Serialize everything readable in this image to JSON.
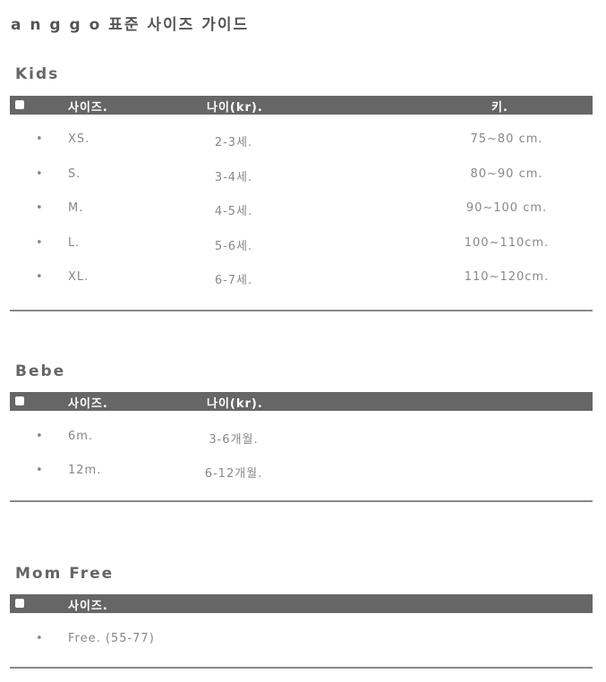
{
  "title": "a n g g o 표준 사이즈 가이드",
  "sections": {
    "kids": {
      "name": "Kids",
      "headers": [
        "사이즈.",
        "나이(kr).",
        "키."
      ],
      "rows": [
        [
          "XS.",
          "2-3세.",
          "75~80 cm."
        ],
        [
          "S.",
          "3-4세.",
          "80~90 cm."
        ],
        [
          "M.",
          "4-5세.",
          "90~100 cm."
        ],
        [
          "L.",
          "5-6세.",
          "100~110cm."
        ],
        [
          "XL.",
          "6-7세.",
          "110~120cm."
        ]
      ]
    },
    "bebe": {
      "name": "Bebe",
      "headers": [
        "사이즈.",
        "나이(kr)."
      ],
      "rows": [
        [
          "6m.",
          "3-6개월."
        ],
        [
          "12m.",
          "6-12개월."
        ]
      ]
    },
    "mom": {
      "name": "Mom Free",
      "headers": [
        "사이즈."
      ],
      "rows": [
        [
          "Free. (55-77)"
        ]
      ]
    }
  },
  "bullet": "•",
  "colors": {
    "header_bar": "#666666",
    "text": "#888888"
  }
}
